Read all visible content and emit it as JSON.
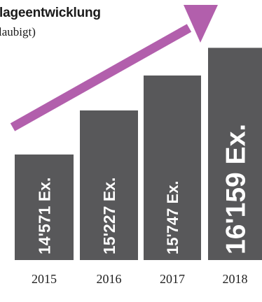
{
  "title": "lageentwicklung",
  "subtitle": "laubigt)",
  "chart_data": {
    "type": "bar",
    "categories": [
      "2015",
      "2016",
      "2017",
      "2018"
    ],
    "values": [
      14571,
      15227,
      15747,
      16159
    ],
    "bar_labels": [
      "14'571 Ex.",
      "15'227 Ex.",
      "15'747 Ex.",
      "16'159 Ex."
    ],
    "title": "lageentwicklung",
    "subtitle": "laubigt)",
    "xlabel": "",
    "ylabel": "",
    "ylim": [
      13000,
      16400
    ],
    "grid": false,
    "legend": "none",
    "colors": {
      "bar": "#58585a",
      "bar_text": "#ffffff",
      "arrow": "#b25fac",
      "year_text": "#222222"
    }
  }
}
